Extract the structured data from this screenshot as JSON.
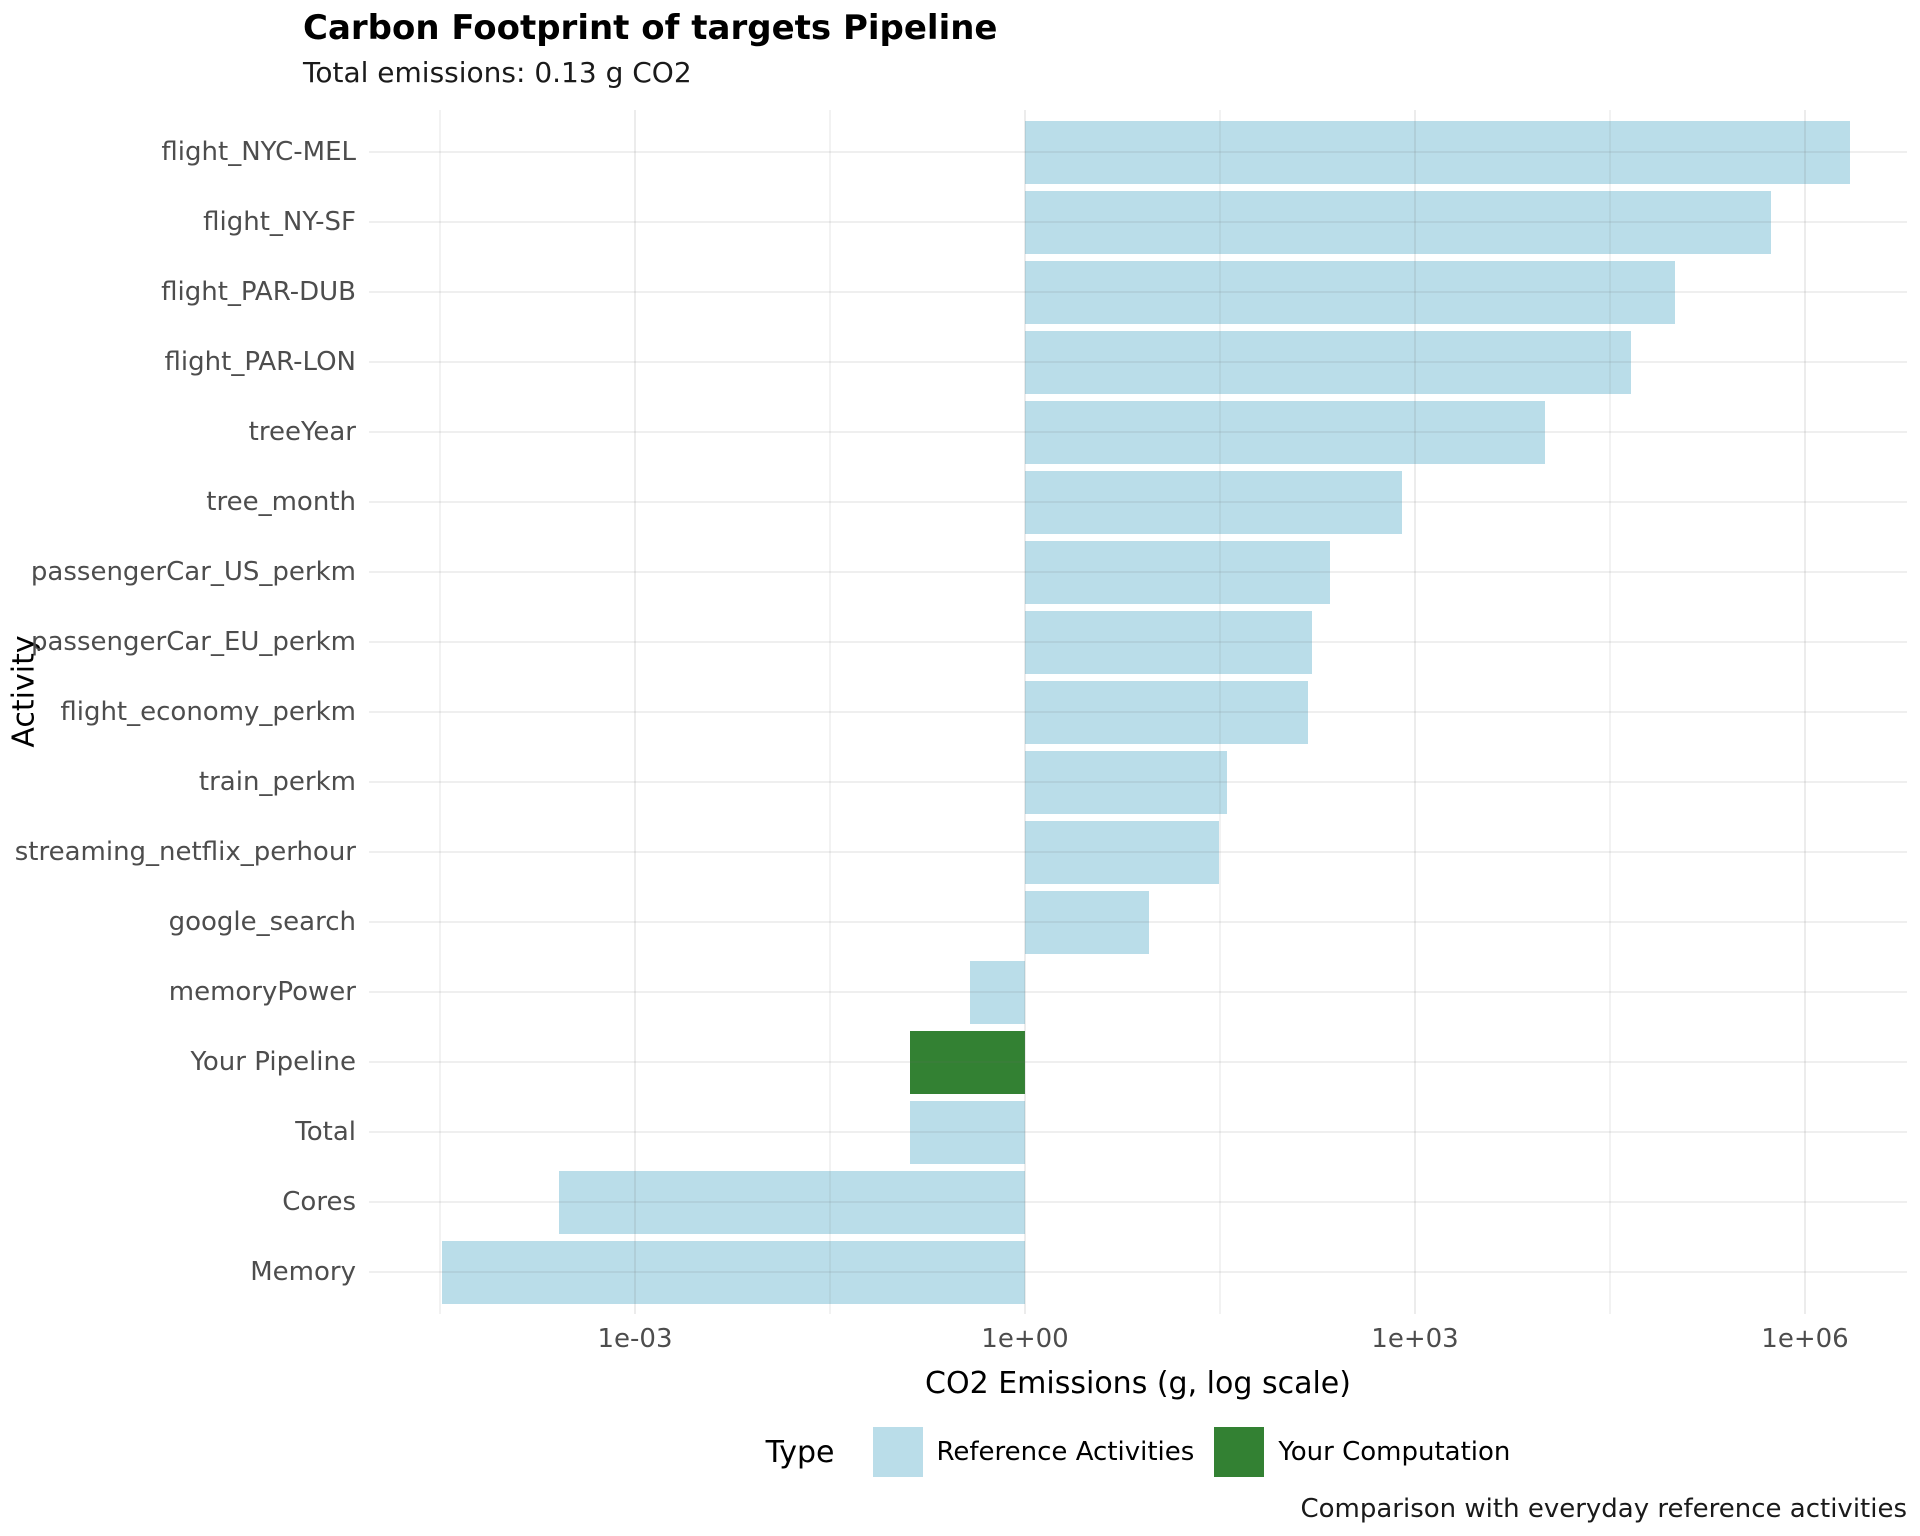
{
  "title": "Carbon Footprint of targets Pipeline",
  "subtitle": "Total emissions: 0.13 g CO2",
  "caption": "Comparison with everyday reference activities",
  "axes": {
    "x_label": "CO2 Emissions (g, log scale)",
    "y_label": "Activity"
  },
  "legend": {
    "title": "Type",
    "items": [
      {
        "label": "Reference Activities",
        "color": "#badde9"
      },
      {
        "label": "Your Computation",
        "color": "#338133"
      }
    ]
  },
  "chart_data": {
    "type": "bar",
    "orientation": "horizontal",
    "x_scale": "log10",
    "grid": true,
    "legend_position": "bottom",
    "title": "Carbon Footprint of targets Pipeline",
    "subtitle": "Total emissions: 0.13 g CO2",
    "xlabel": "CO2 Emissions (g, log scale)",
    "ylabel": "Activity",
    "xlim_log10": [
      -5.05,
      6.8
    ],
    "x_ticks": [
      {
        "label": "1e-03",
        "value": 0.001
      },
      {
        "label": "1e+00",
        "value": 1
      },
      {
        "label": "1e+03",
        "value": 1000
      },
      {
        "label": "1e+06",
        "value": 1000000
      }
    ],
    "x_minor_ticks": [
      3.16e-05,
      0.0316,
      31.6,
      31623
    ],
    "bar_baseline_value": 1,
    "bars": [
      {
        "category": "flight_NYC-MEL",
        "value_g": 2200000,
        "type": "Reference Activities"
      },
      {
        "category": "flight_NY-SF",
        "value_g": 550000,
        "type": "Reference Activities"
      },
      {
        "category": "flight_PAR-DUB",
        "value_g": 100000,
        "type": "Reference Activities"
      },
      {
        "category": "flight_PAR-LON",
        "value_g": 46000,
        "type": "Reference Activities"
      },
      {
        "category": "treeYear",
        "value_g": 10000,
        "type": "Reference Activities"
      },
      {
        "category": "tree_month",
        "value_g": 800,
        "type": "Reference Activities"
      },
      {
        "category": "passengerCar_US_perkm",
        "value_g": 220,
        "type": "Reference Activities"
      },
      {
        "category": "passengerCar_EU_perkm",
        "value_g": 160,
        "type": "Reference Activities"
      },
      {
        "category": "flight_economy_perkm",
        "value_g": 150,
        "type": "Reference Activities"
      },
      {
        "category": "train_perkm",
        "value_g": 36,
        "type": "Reference Activities"
      },
      {
        "category": "streaming_netflix_perhour",
        "value_g": 31,
        "type": "Reference Activities"
      },
      {
        "category": "google_search",
        "value_g": 9,
        "type": "Reference Activities"
      },
      {
        "category": "memoryPower",
        "value_g": 0.38,
        "type": "Reference Activities"
      },
      {
        "category": "Your Pipeline",
        "value_g": 0.13,
        "type": "Your Computation"
      },
      {
        "category": "Total",
        "value_g": 0.13,
        "type": "Reference Activities"
      },
      {
        "category": "Cores",
        "value_g": 0.00026,
        "type": "Reference Activities"
      },
      {
        "category": "Memory",
        "value_g": 3.3e-05,
        "type": "Reference Activities"
      }
    ],
    "colors": {
      "Reference Activities": "#badde9",
      "Your Computation": "#338133"
    }
  }
}
